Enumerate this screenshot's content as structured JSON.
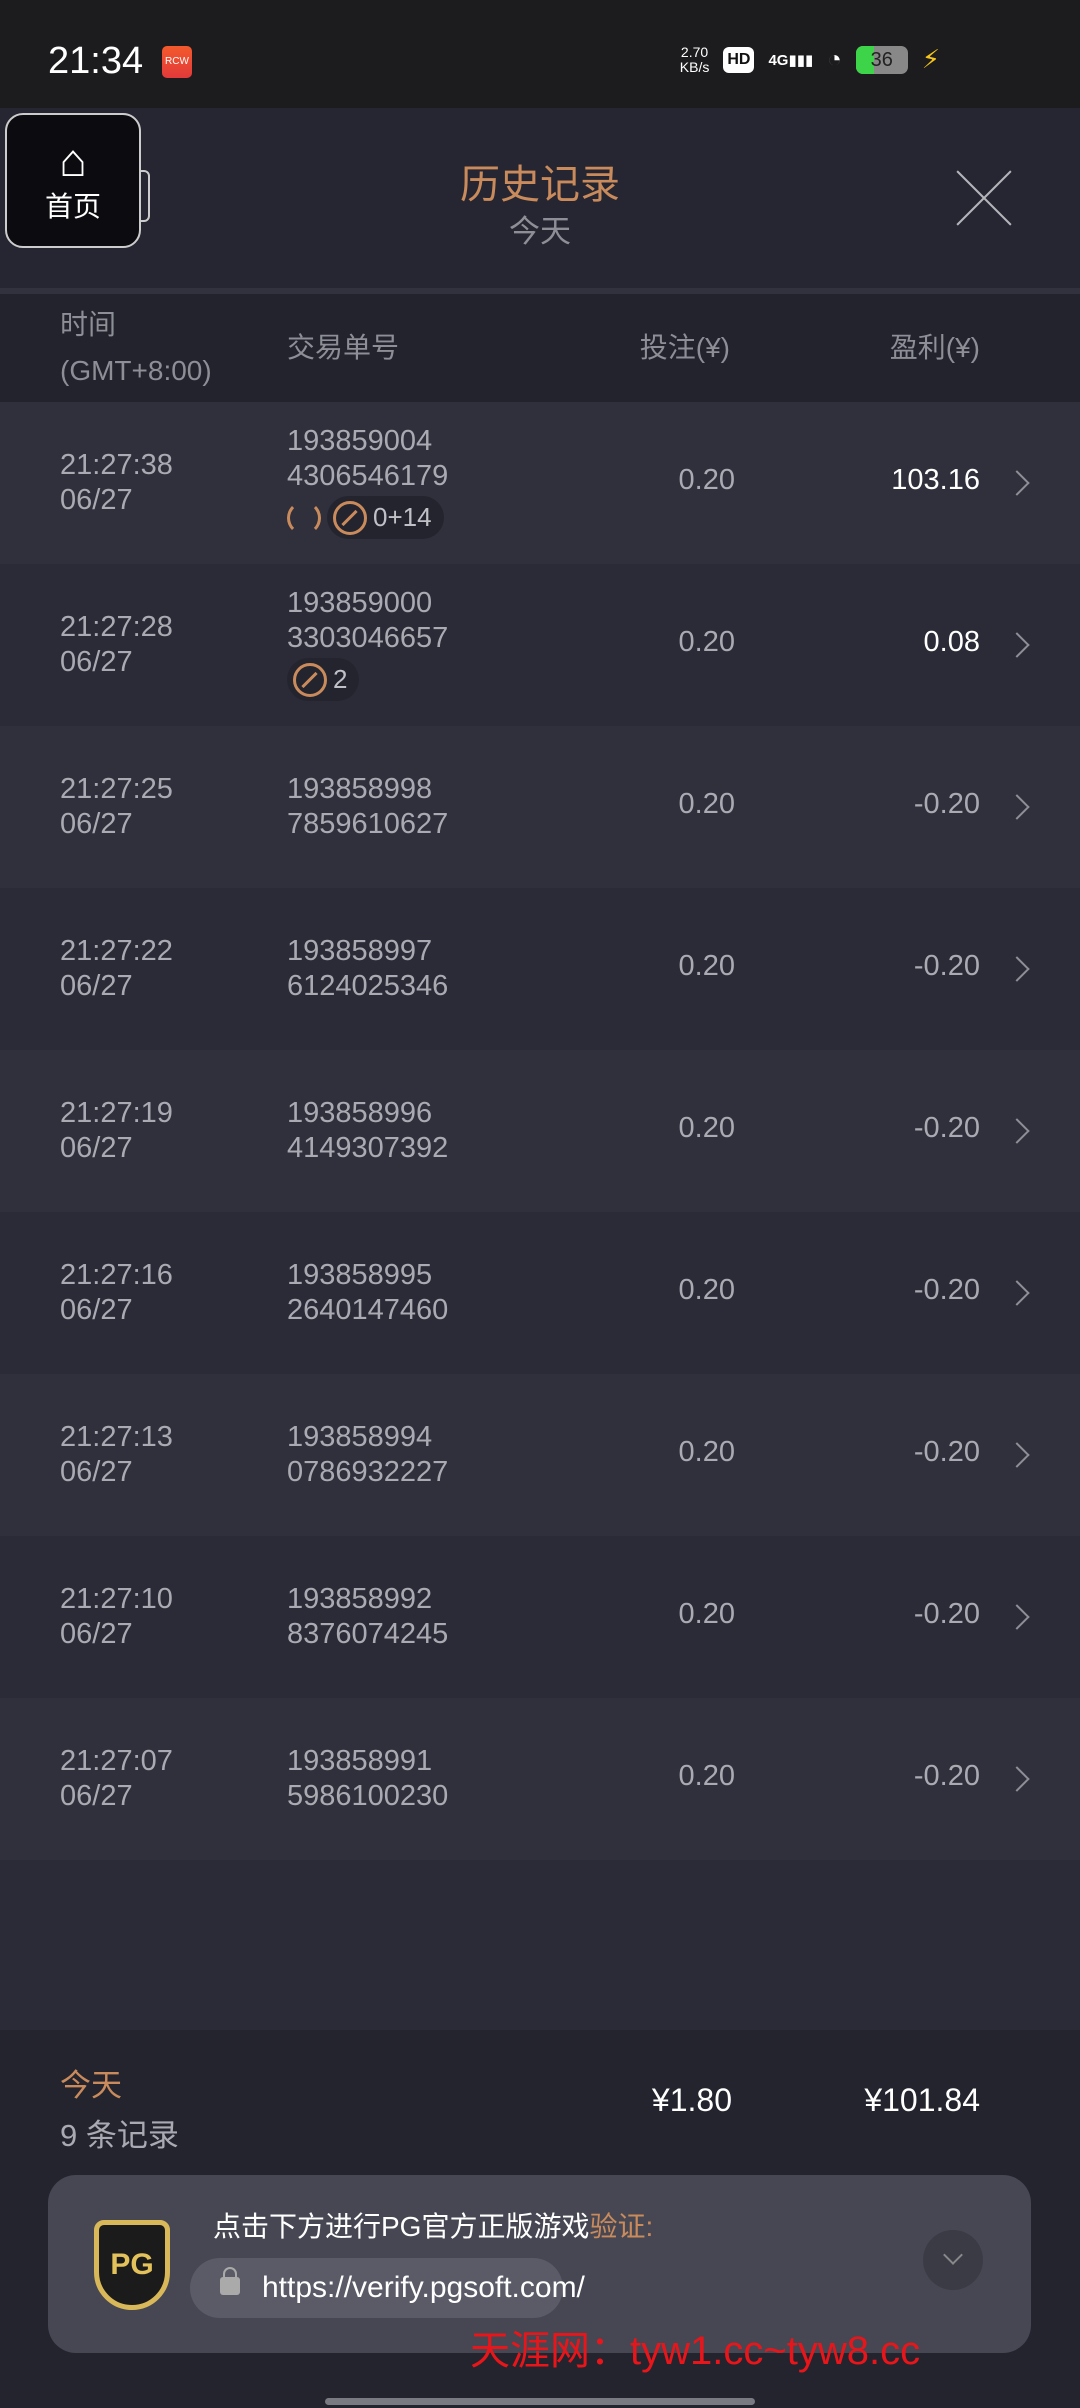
{
  "status_bar": {
    "time": "21:34",
    "app_badge": "RCW",
    "net_speed_value": "2.70",
    "net_speed_unit": "KB/s",
    "hd": "HD",
    "network": "4G",
    "battery": "36",
    "battery_level_percent": 36
  },
  "header": {
    "title": "历史记录",
    "subtitle": "今天",
    "home_label": "首页"
  },
  "columns": {
    "time": "时间",
    "timezone": "(GMT+8:00)",
    "order": "交易单号",
    "bet": "投注(¥)",
    "profit": "盈利(¥)"
  },
  "rows": [
    {
      "time": "21:27:38",
      "date": "06/27",
      "order1": "193859004",
      "order2": "4306546179",
      "bet": "0.20",
      "profit": "103.16",
      "positive": true,
      "respin": true,
      "freespin": "0+14"
    },
    {
      "time": "21:27:28",
      "date": "06/27",
      "order1": "193859000",
      "order2": "3303046657",
      "bet": "0.20",
      "profit": "0.08",
      "positive": true,
      "freespin": "2"
    },
    {
      "time": "21:27:25",
      "date": "06/27",
      "order1": "193858998",
      "order2": "7859610627",
      "bet": "0.20",
      "profit": "-0.20"
    },
    {
      "time": "21:27:22",
      "date": "06/27",
      "order1": "193858997",
      "order2": "6124025346",
      "bet": "0.20",
      "profit": "-0.20"
    },
    {
      "time": "21:27:19",
      "date": "06/27",
      "order1": "193858996",
      "order2": "4149307392",
      "bet": "0.20",
      "profit": "-0.20"
    },
    {
      "time": "21:27:16",
      "date": "06/27",
      "order1": "193858995",
      "order2": "2640147460",
      "bet": "0.20",
      "profit": "-0.20"
    },
    {
      "time": "21:27:13",
      "date": "06/27",
      "order1": "193858994",
      "order2": "0786932227",
      "bet": "0.20",
      "profit": "-0.20"
    },
    {
      "time": "21:27:10",
      "date": "06/27",
      "order1": "193858992",
      "order2": "8376074245",
      "bet": "0.20",
      "profit": "-0.20"
    },
    {
      "time": "21:27:07",
      "date": "06/27",
      "order1": "193858991",
      "order2": "5986100230",
      "bet": "0.20",
      "profit": "-0.20"
    }
  ],
  "summary": {
    "period": "今天",
    "count": "9 条记录",
    "total_bet": "¥1.80",
    "total_profit": "¥101.84"
  },
  "verify": {
    "text": "点击下方进行PG官方正版游戏",
    "highlight": "验证:",
    "url": "https://verify.pgsoft.com/",
    "logo": "PG"
  },
  "watermark": "天涯网：tyw1.cc~tyw8.cc",
  "colors": {
    "accent": "#c98a5c",
    "background": "#2a2b36",
    "header": "#252631"
  }
}
